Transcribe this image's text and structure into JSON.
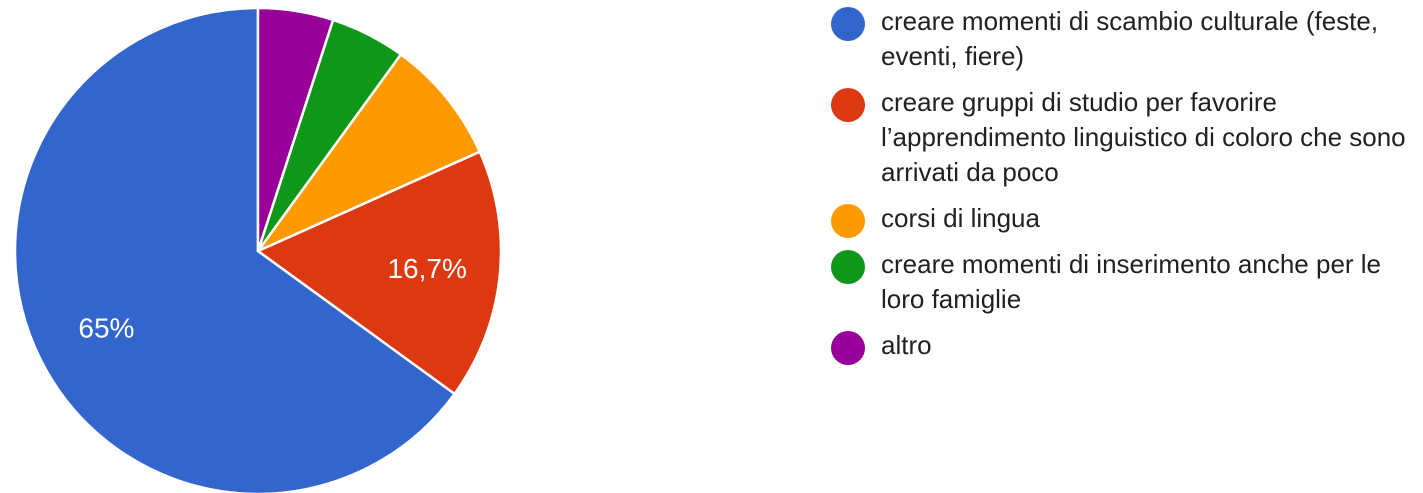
{
  "chart_data": {
    "type": "pie",
    "slices": [
      {
        "label": "creare momenti di scambio culturale (feste, eventi, fiere)",
        "value": 65,
        "value_label": "65%",
        "color": "#3366cc"
      },
      {
        "label": "creare gruppi di studio per favorire l’apprendimento linguistico di coloro che sono arrivati da poco",
        "value": 16.7,
        "value_label": "16,7%",
        "color": "#dc3912"
      },
      {
        "label": "corsi di lingua",
        "value": 8.3,
        "value_label": "",
        "color": "#ff9900"
      },
      {
        "label": "creare momenti di inserimento anche per le loro famiglie",
        "value": 5,
        "value_label": "",
        "color": "#109618"
      },
      {
        "label": "altro",
        "value": 5,
        "value_label": "",
        "color": "#990099"
      }
    ],
    "start_angle_deg": 90,
    "direction": "counterclockwise",
    "legend_position": "right"
  }
}
